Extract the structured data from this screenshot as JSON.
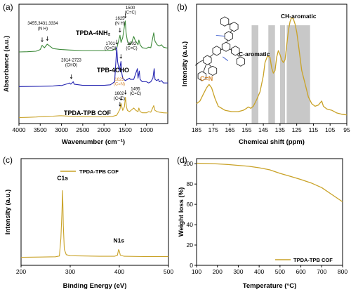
{
  "colors": {
    "gold": "#c9a227",
    "green": "#3d8a3a",
    "blue": "#2323b0",
    "orange": "#d2862f",
    "highlight": "#c8c8c8"
  },
  "chart_data": [
    {
      "panel": "(a)",
      "type": "line",
      "xlabel": "Wavenumber (cm⁻¹)",
      "ylabel": "Absorbance (a.u.)",
      "xlim": [
        4000,
        500
      ],
      "x_ticks": [
        "4000",
        "3500",
        "3000",
        "2500",
        "2000",
        "1500",
        "1000"
      ],
      "series": [
        {
          "name": "TPDA-4NH₂",
          "color": "#3d8a3a",
          "points": [
            [
              4000,
              0.7
            ],
            [
              3800,
              0.702
            ],
            [
              3600,
              0.706
            ],
            [
              3500,
              0.72
            ],
            [
              3455,
              0.755
            ],
            [
              3431,
              0.745
            ],
            [
              3400,
              0.735
            ],
            [
              3334,
              0.765
            ],
            [
              3200,
              0.728
            ],
            [
              3050,
              0.722
            ],
            [
              3000,
              0.72
            ],
            [
              2800,
              0.716
            ],
            [
              2500,
              0.712
            ],
            [
              2200,
              0.712
            ],
            [
              2000,
              0.712
            ],
            [
              1800,
              0.714
            ],
            [
              1700,
              0.73
            ],
            [
              1625,
              0.84
            ],
            [
              1600,
              0.78
            ],
            [
              1560,
              0.82
            ],
            [
              1500,
              0.96
            ],
            [
              1480,
              0.86
            ],
            [
              1450,
              0.79
            ],
            [
              1400,
              0.76
            ],
            [
              1350,
              0.78
            ],
            [
              1300,
              0.83
            ],
            [
              1270,
              0.8
            ],
            [
              1200,
              0.76
            ],
            [
              1180,
              0.8
            ],
            [
              1150,
              0.76
            ],
            [
              1100,
              0.735
            ],
            [
              1000,
              0.73
            ],
            [
              950,
              0.74
            ],
            [
              900,
              0.735
            ],
            [
              830,
              0.86
            ],
            [
              800,
              0.79
            ],
            [
              750,
              0.76
            ],
            [
              700,
              0.75
            ],
            [
              650,
              0.76
            ],
            [
              600,
              0.74
            ],
            [
              550,
              0.735
            ],
            [
              500,
              0.732
            ]
          ]
        },
        {
          "name": "TPB-4CHO",
          "color": "#2323b0",
          "points": [
            [
              4000,
              0.41
            ],
            [
              3500,
              0.412
            ],
            [
              3200,
              0.414
            ],
            [
              3050,
              0.42
            ],
            [
              3000,
              0.418
            ],
            [
              2850,
              0.435
            ],
            [
              2814,
              0.44
            ],
            [
              2780,
              0.43
            ],
            [
              2723,
              0.45
            ],
            [
              2700,
              0.43
            ],
            [
              2500,
              0.42
            ],
            [
              2200,
              0.42
            ],
            [
              2000,
              0.42
            ],
            [
              1850,
              0.425
            ],
            [
              1750,
              0.45
            ],
            [
              1701,
              0.74
            ],
            [
              1680,
              0.62
            ],
            [
              1640,
              0.54
            ],
            [
              1602,
              0.62
            ],
            [
              1580,
              0.52
            ],
            [
              1560,
              0.48
            ],
            [
              1500,
              0.46
            ],
            [
              1450,
              0.47
            ],
            [
              1400,
              0.48
            ],
            [
              1380,
              0.47
            ],
            [
              1300,
              0.47
            ],
            [
              1215,
              0.56
            ],
            [
              1200,
              0.48
            ],
            [
              1170,
              0.54
            ],
            [
              1150,
              0.47
            ],
            [
              1100,
              0.45
            ],
            [
              1000,
              0.45
            ],
            [
              950,
              0.44
            ],
            [
              900,
              0.45
            ],
            [
              850,
              0.48
            ],
            [
              820,
              0.56
            ],
            [
              800,
              0.47
            ],
            [
              760,
              0.46
            ],
            [
              720,
              0.47
            ],
            [
              700,
              0.45
            ],
            [
              650,
              0.46
            ],
            [
              600,
              0.44
            ],
            [
              500,
              0.44
            ]
          ]
        },
        {
          "name": "TPDA-TPB COF",
          "color": "#c9a227",
          "points": [
            [
              4000,
              0.15
            ],
            [
              3800,
              0.152
            ],
            [
              3600,
              0.155
            ],
            [
              3400,
              0.16
            ],
            [
              3200,
              0.162
            ],
            [
              3050,
              0.165
            ],
            [
              3000,
              0.165
            ],
            [
              2800,
              0.162
            ],
            [
              2500,
              0.158
            ],
            [
              2200,
              0.156
            ],
            [
              2000,
              0.156
            ],
            [
              1800,
              0.16
            ],
            [
              1700,
              0.17
            ],
            [
              1625,
              0.22
            ],
            [
              1602,
              0.27
            ],
            [
              1560,
              0.21
            ],
            [
              1520,
              0.24
            ],
            [
              1495,
              0.32
            ],
            [
              1470,
              0.24
            ],
            [
              1450,
              0.21
            ],
            [
              1400,
              0.2
            ],
            [
              1300,
              0.23
            ],
            [
              1250,
              0.21
            ],
            [
              1200,
              0.2
            ],
            [
              1180,
              0.23
            ],
            [
              1150,
              0.2
            ],
            [
              1100,
              0.19
            ],
            [
              1000,
              0.19
            ],
            [
              950,
              0.2
            ],
            [
              900,
              0.195
            ],
            [
              830,
              0.25
            ],
            [
              800,
              0.21
            ],
            [
              750,
              0.2
            ],
            [
              700,
              0.195
            ],
            [
              600,
              0.19
            ],
            [
              500,
              0.188
            ]
          ]
        }
      ],
      "annotations": [
        {
          "text": "3455,3431,3334",
          "x": 3440,
          "y": 0.93
        },
        {
          "text": "(N  H)",
          "x": 3440,
          "y": 0.885
        },
        {
          "text": "1625",
          "x": 1625,
          "y": 0.97
        },
        {
          "text": "(N  H)",
          "x": 1625,
          "y": 0.93
        },
        {
          "text": "1500",
          "x": 1380,
          "y": 1.06
        },
        {
          "text": "(C=C)",
          "x": 1380,
          "y": 1.02
        },
        {
          "text": "2814-2723",
          "x": 2770,
          "y": 0.62
        },
        {
          "text": "(CHO)",
          "x": 2770,
          "y": 0.58
        },
        {
          "text": "1701",
          "x": 1850,
          "y": 0.76
        },
        {
          "text": "(C=O)",
          "x": 1850,
          "y": 0.72
        },
        {
          "text": "1602",
          "x": 1350,
          "y": 0.76
        },
        {
          "text": "(C=C)",
          "x": 1350,
          "y": 0.72
        },
        {
          "text": "1602",
          "x": 1640,
          "y": 0.34
        },
        {
          "text": "(C=C)",
          "x": 1640,
          "y": 0.3
        },
        {
          "text": "1495",
          "x": 1260,
          "y": 0.38
        },
        {
          "text": "(C=C)",
          "x": 1260,
          "y": 0.34
        }
      ],
      "orange_annotations": [
        {
          "text": "1625",
          "x": 1640,
          "y": 0.46
        },
        {
          "text": "(C=N)",
          "x": 1640,
          "y": 0.42
        }
      ]
    },
    {
      "panel": "(b)",
      "type": "line",
      "xlabel": "Chemical shift (ppm)",
      "ylabel": "Intensity (a.u.)",
      "xlim": [
        185,
        95
      ],
      "x_ticks": [
        "185",
        "175",
        "165",
        "155",
        "145",
        "135",
        "125",
        "115",
        "105",
        "95"
      ],
      "highlight_regions": [
        [
          152,
          148
        ],
        [
          142,
          138
        ],
        [
          135,
          132
        ],
        [
          131,
          117
        ]
      ],
      "series": [
        {
          "name": "TPDA-TPB COF",
          "color": "#c9a227",
          "points": [
            [
              185,
              0.25
            ],
            [
              183,
              0.27
            ],
            [
              181,
              0.32
            ],
            [
              179,
              0.37
            ],
            [
              177.5,
              0.395
            ],
            [
              176,
              0.37
            ],
            [
              174,
              0.29
            ],
            [
              172,
              0.23
            ],
            [
              168,
              0.2
            ],
            [
              164,
              0.19
            ],
            [
              160,
              0.19
            ],
            [
              157,
              0.2
            ],
            [
              155,
              0.215
            ],
            [
              154,
              0.225
            ],
            [
              152.5,
              0.215
            ],
            [
              151,
              0.23
            ],
            [
              149,
              0.28
            ],
            [
              147,
              0.34
            ],
            [
              145,
              0.46
            ],
            [
              144,
              0.56
            ],
            [
              142.5,
              0.61
            ],
            [
              141,
              0.6
            ],
            [
              140,
              0.52
            ],
            [
              139,
              0.48
            ],
            [
              138,
              0.5
            ],
            [
              137,
              0.6
            ],
            [
              136,
              0.65
            ],
            [
              135,
              0.62
            ],
            [
              134,
              0.58
            ],
            [
              133,
              0.56
            ],
            [
              132,
              0.58
            ],
            [
              131,
              0.69
            ],
            [
              130,
              0.8
            ],
            [
              129,
              0.87
            ],
            [
              128,
              0.9
            ],
            [
              127,
              0.89
            ],
            [
              126,
              0.85
            ],
            [
              125,
              0.79
            ],
            [
              124,
              0.7
            ],
            [
              123,
              0.6
            ],
            [
              122,
              0.5
            ],
            [
              120,
              0.4
            ],
            [
              118,
              0.3
            ],
            [
              116,
              0.25
            ],
            [
              114,
              0.23
            ],
            [
              112,
              0.24
            ],
            [
              110,
              0.27
            ],
            [
              109,
              0.23
            ],
            [
              107,
              0.21
            ],
            [
              104,
              0.2
            ],
            [
              101,
              0.18
            ],
            [
              98,
              0.17
            ],
            [
              95,
              0.165
            ]
          ]
        }
      ],
      "labels": {
        "cn": "C=N",
        "c_aromatic": "C-aromatic",
        "ch_aromatic": "CH-aromatic"
      }
    },
    {
      "panel": "(c)",
      "type": "line",
      "xlabel": "Binding Energy (eV)",
      "ylabel": "Intensity (a.u.)",
      "xlim": [
        200,
        500
      ],
      "x_ticks": [
        "200",
        "300",
        "400",
        "500"
      ],
      "legend": "TPDA-TPB COF",
      "legend_position": "top",
      "series": [
        {
          "name": "TPDA-TPB COF",
          "color": "#c9a227",
          "points": [
            [
              200,
              0.06
            ],
            [
              240,
              0.062
            ],
            [
              270,
              0.064
            ],
            [
              278,
              0.07
            ],
            [
              281,
              0.2
            ],
            [
              283,
              0.38
            ],
            [
              284.5,
              0.56
            ],
            [
              286,
              0.3
            ],
            [
              288,
              0.12
            ],
            [
              292,
              0.08
            ],
            [
              300,
              0.072
            ],
            [
              330,
              0.07
            ],
            [
              360,
              0.068
            ],
            [
              390,
              0.068
            ],
            [
              396,
              0.075
            ],
            [
              398.5,
              0.118
            ],
            [
              400,
              0.108
            ],
            [
              402,
              0.076
            ],
            [
              410,
              0.068
            ],
            [
              450,
              0.066
            ],
            [
              500,
              0.066
            ]
          ]
        }
      ],
      "peak_labels": [
        {
          "text": "C1s",
          "x": 284.5,
          "y": 0.64
        },
        {
          "text": "N1s",
          "x": 399,
          "y": 0.17
        }
      ]
    },
    {
      "panel": "(d)",
      "type": "line",
      "xlabel": "Temperature (°C)",
      "ylabel": "Weight loss (%)",
      "xlim": [
        100,
        800
      ],
      "ylim": [
        0,
        100
      ],
      "x_ticks": [
        "100",
        "200",
        "300",
        "400",
        "500",
        "600",
        "700",
        "800"
      ],
      "y_ticks": [
        "0",
        "20",
        "40",
        "60",
        "80",
        "100"
      ],
      "legend": "TPDA-TPB COF",
      "legend_position": "bottom-right",
      "series": [
        {
          "name": "TPDA-TPB COF",
          "color": "#c9a227",
          "points": [
            [
              100,
              100.5
            ],
            [
              150,
              100.2
            ],
            [
              200,
              99.8
            ],
            [
              250,
              99.2
            ],
            [
              300,
              98.4
            ],
            [
              350,
              97.5
            ],
            [
              400,
              96.0
            ],
            [
              450,
              94.0
            ],
            [
              500,
              90.5
            ],
            [
              550,
              87.5
            ],
            [
              600,
              84.5
            ],
            [
              650,
              81.0
            ],
            [
              700,
              76.5
            ],
            [
              750,
              69.5
            ],
            [
              800,
              62.5
            ]
          ]
        }
      ]
    }
  ]
}
